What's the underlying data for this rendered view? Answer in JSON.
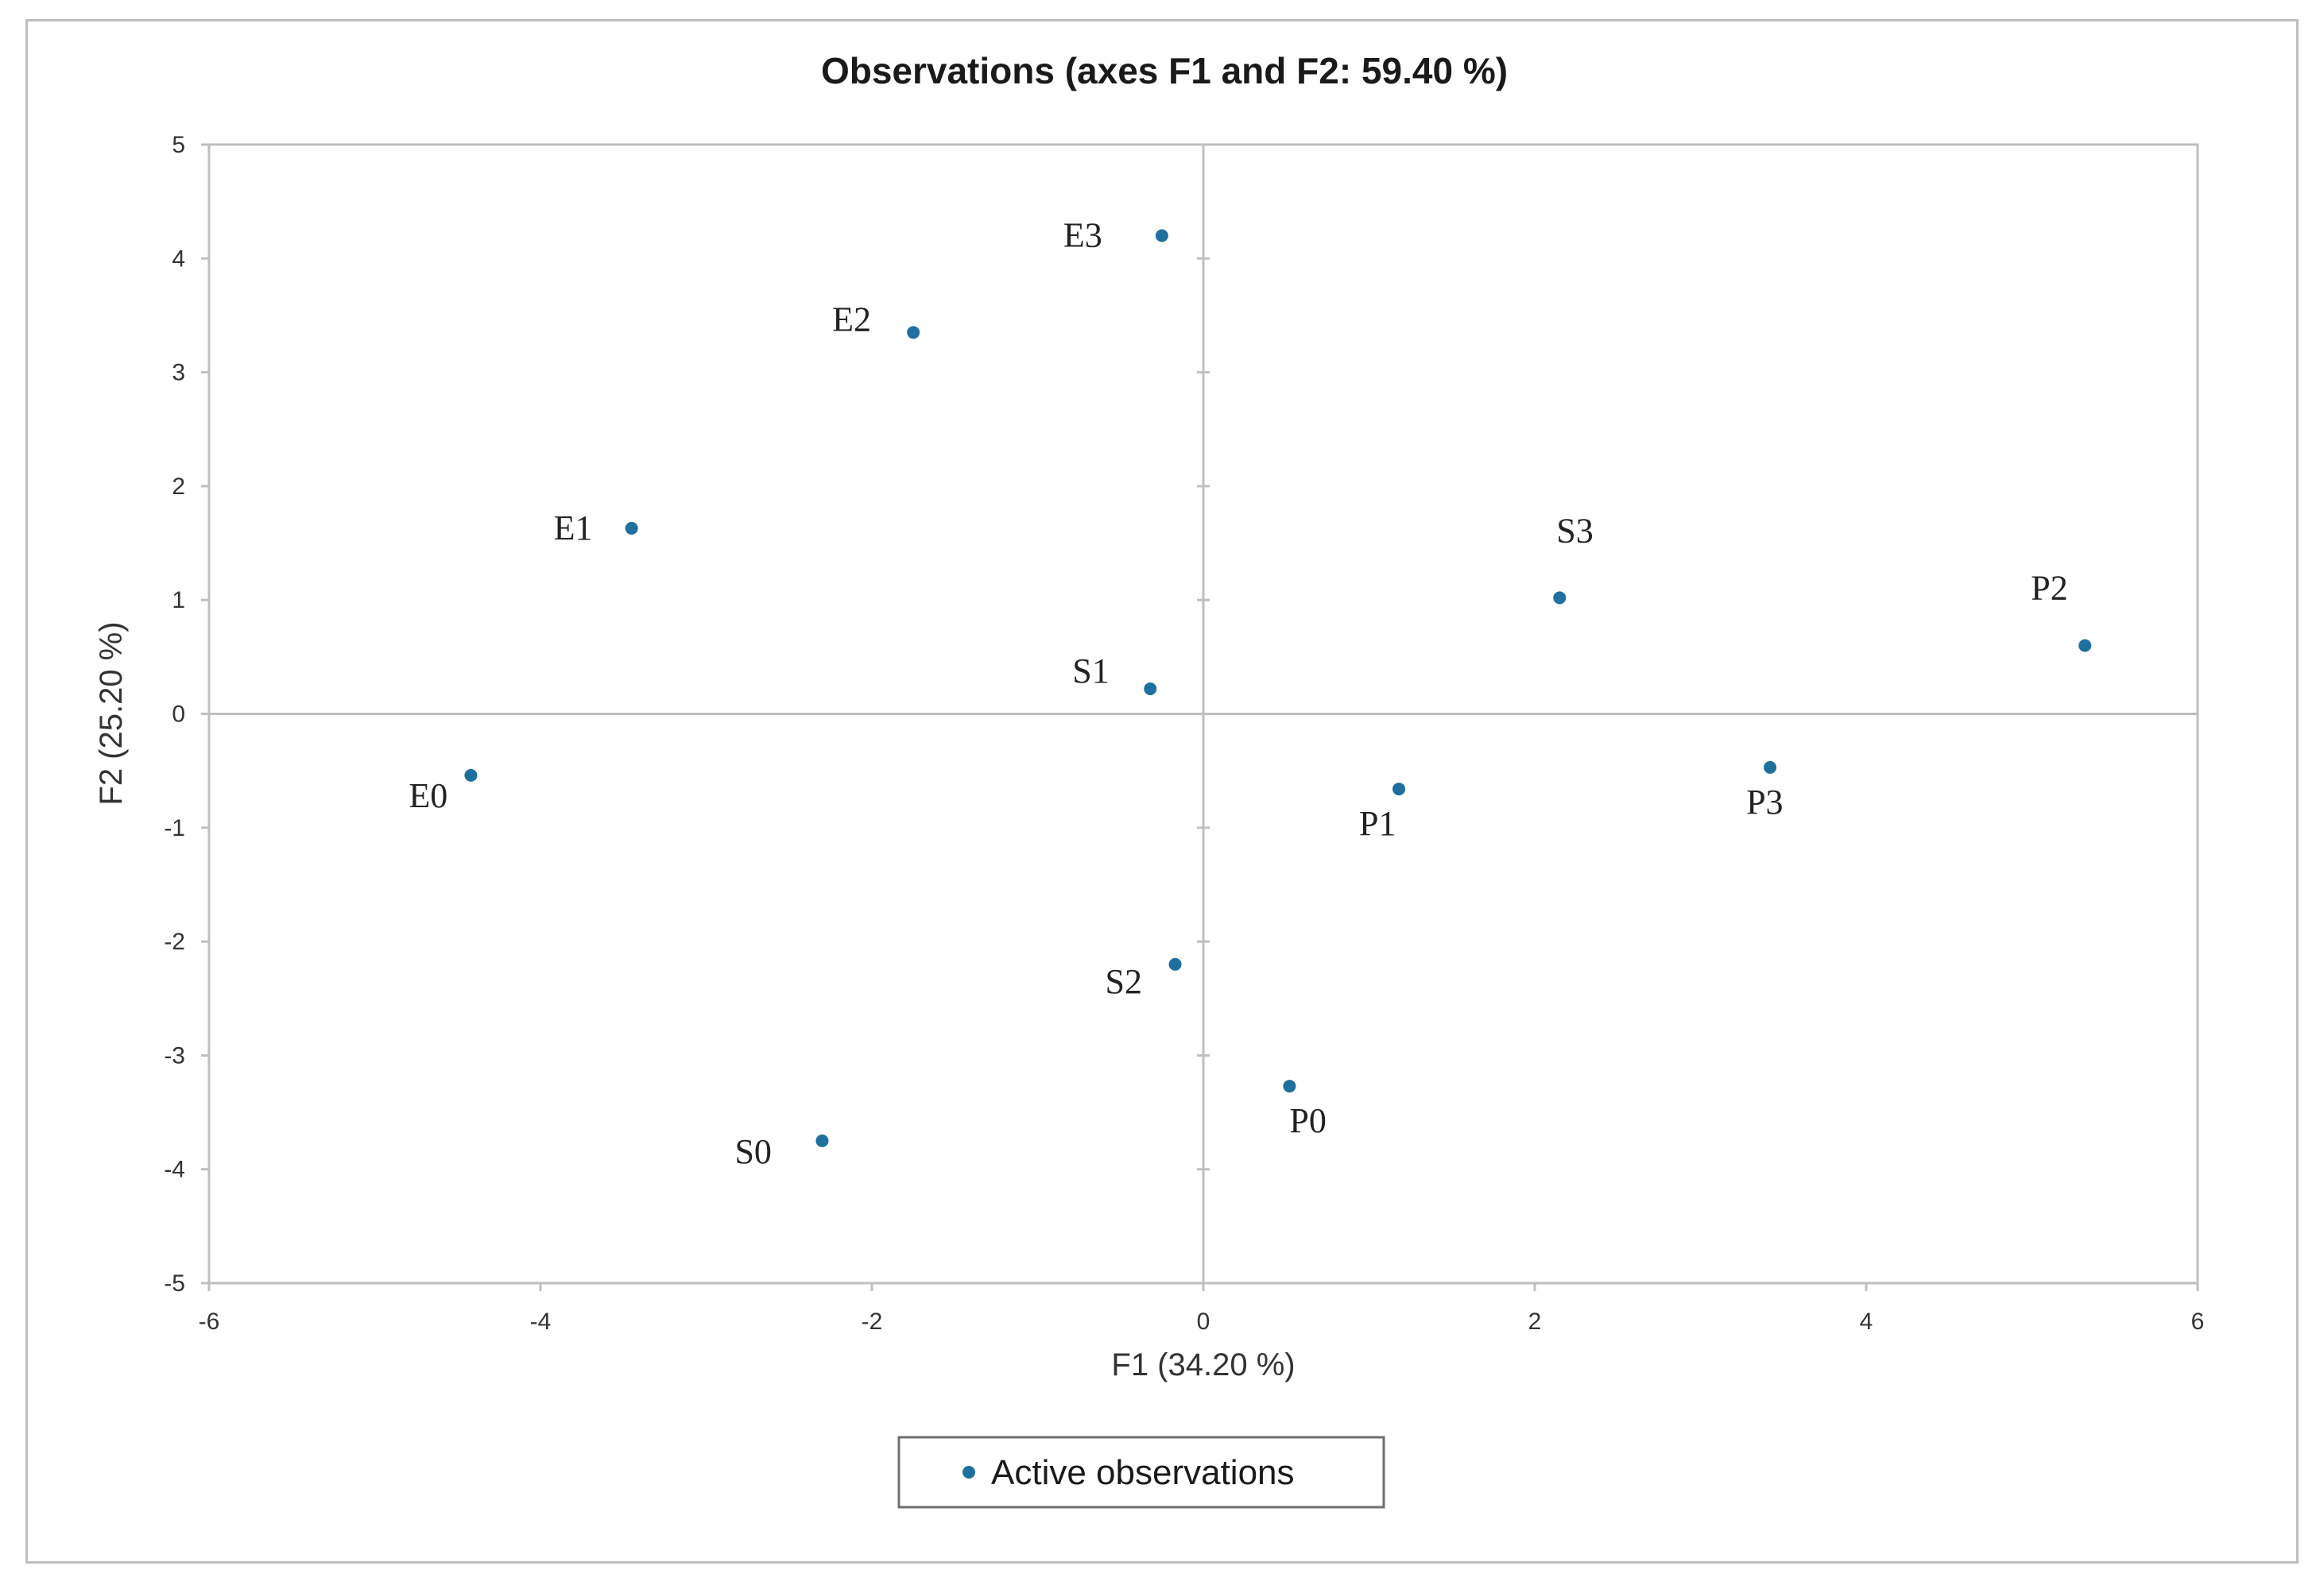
{
  "chart_data": {
    "type": "scatter",
    "title": "Observations (axes F1 and F2: 59.40 %)",
    "xlabel": "F1 (34.20 %)",
    "ylabel": "F2 (25.20 %)",
    "xlim": [
      -6,
      6
    ],
    "ylim": [
      -5,
      5
    ],
    "xticks": [
      -6,
      -4,
      -2,
      0,
      2,
      4,
      6
    ],
    "yticks": [
      -5,
      -4,
      -3,
      -2,
      -1,
      0,
      1,
      2,
      3,
      4,
      5
    ],
    "grid": false,
    "legend": {
      "position": "bottom",
      "entries": [
        "Active observations"
      ]
    },
    "colors": {
      "points": "#1f6f9f",
      "axes": "#bfbfbf",
      "frame": "#bfbfbf"
    },
    "series": [
      {
        "name": "Active observations",
        "points": [
          {
            "label": "E0",
            "x": -4.42,
            "y": -0.54
          },
          {
            "label": "E1",
            "x": -3.45,
            "y": 1.63
          },
          {
            "label": "E2",
            "x": -1.75,
            "y": 3.35
          },
          {
            "label": "E3",
            "x": -0.25,
            "y": 4.2
          },
          {
            "label": "S0",
            "x": -2.3,
            "y": -3.75
          },
          {
            "label": "S1",
            "x": -0.32,
            "y": 0.22
          },
          {
            "label": "S2",
            "x": -0.17,
            "y": -2.2
          },
          {
            "label": "S3",
            "x": 2.15,
            "y": 1.02
          },
          {
            "label": "P0",
            "x": 0.52,
            "y": -3.27
          },
          {
            "label": "P1",
            "x": 1.18,
            "y": -0.66
          },
          {
            "label": "P2",
            "x": 5.32,
            "y": 0.6
          },
          {
            "label": "P3",
            "x": 3.42,
            "y": -0.47
          }
        ]
      }
    ]
  }
}
